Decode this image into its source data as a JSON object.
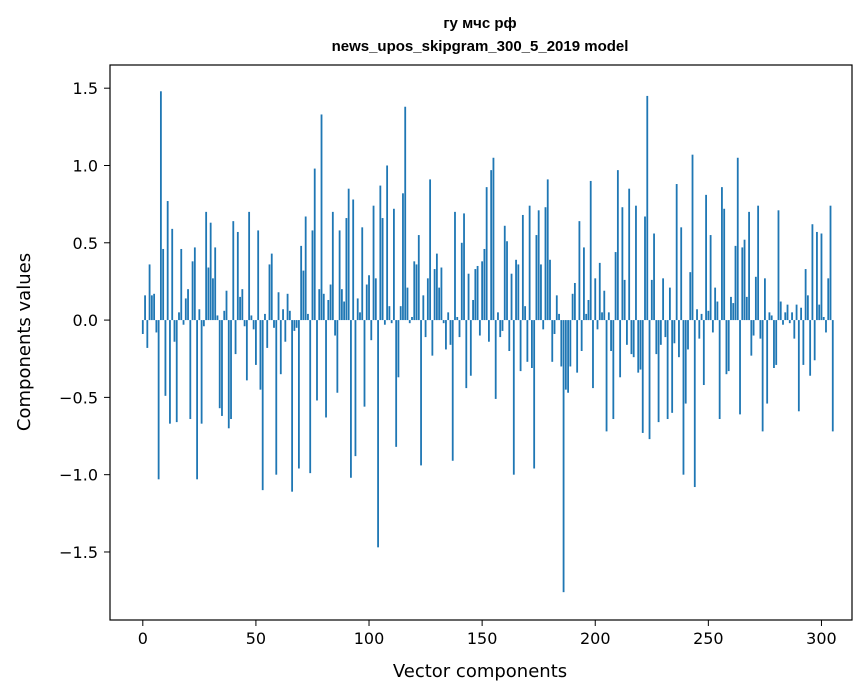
{
  "chart_data": {
    "type": "bar",
    "title": "гу мчс рф",
    "subtitle": "news_upos_skipgram_300_5_2019 model",
    "xlabel": "Vector components",
    "ylabel": "Components values",
    "xlim": [
      -14.5,
      313.5
    ],
    "ylim": [
      -1.94,
      1.65
    ],
    "xticks": [
      0,
      50,
      100,
      150,
      200,
      250,
      300
    ],
    "xtick_labels": [
      "0",
      "50",
      "100",
      "150",
      "200",
      "250",
      "300"
    ],
    "yticks": [
      -1.5,
      -1.0,
      -0.5,
      0.0,
      0.5,
      1.0,
      1.5
    ],
    "ytick_labels": [
      "−1.5",
      "−1.0",
      "−0.5",
      "0.0",
      "0.5",
      "1.0",
      "1.5"
    ],
    "bar_color": "#1f77b4",
    "grid": false,
    "values": [
      -0.09,
      0.16,
      -0.18,
      0.36,
      0.16,
      0.17,
      -0.08,
      -1.03,
      1.48,
      0.46,
      -0.49,
      0.77,
      -0.67,
      0.59,
      -0.14,
      -0.66,
      0.05,
      0.46,
      -0.03,
      0.14,
      0.2,
      -0.64,
      0.38,
      0.47,
      -1.03,
      0.07,
      -0.67,
      -0.04,
      0.7,
      0.34,
      0.63,
      0.27,
      0.47,
      0.03,
      -0.57,
      -0.62,
      0.06,
      0.19,
      -0.7,
      -0.64,
      0.64,
      -0.22,
      0.57,
      0.15,
      0.2,
      -0.04,
      -0.39,
      0.7,
      0.03,
      -0.06,
      -0.29,
      0.58,
      -0.45,
      -1.1,
      0.04,
      -0.18,
      0.36,
      0.43,
      -0.05,
      -1.0,
      0.18,
      -0.35,
      0.07,
      -0.14,
      0.17,
      0.06,
      -1.11,
      -0.07,
      -0.05,
      -0.96,
      0.48,
      0.32,
      0.67,
      0.04,
      -0.99,
      0.58,
      0.98,
      -0.52,
      0.2,
      1.33,
      0.17,
      -0.63,
      0.13,
      0.23,
      0.7,
      -0.1,
      -0.47,
      0.58,
      0.2,
      0.12,
      0.66,
      0.85,
      -1.02,
      0.78,
      -0.88,
      0.14,
      0.05,
      0.6,
      -0.56,
      0.23,
      0.29,
      -0.13,
      0.74,
      0.27,
      -1.47,
      0.87,
      0.66,
      -0.03,
      1.0,
      0.09,
      -0.02,
      0.72,
      -0.82,
      -0.37,
      0.09,
      0.82,
      1.38,
      0.21,
      -0.02,
      0.02,
      0.38,
      0.36,
      0.55,
      -0.94,
      0.16,
      -0.11,
      0.27,
      0.91,
      -0.23,
      0.33,
      0.43,
      0.21,
      0.34,
      -0.02,
      -0.19,
      0.05,
      -0.16,
      -0.91,
      0.7,
      0.02,
      -0.11,
      0.5,
      0.69,
      -0.44,
      0.3,
      -0.36,
      0.13,
      0.33,
      0.35,
      -0.1,
      0.38,
      0.46,
      0.86,
      -0.14,
      0.97,
      1.05,
      -0.51,
      0.05,
      -0.11,
      -0.07,
      0.61,
      0.51,
      -0.2,
      0.3,
      -1.0,
      0.39,
      0.36,
      -0.33,
      0.68,
      0.09,
      -0.27,
      0.74,
      -0.31,
      -0.96,
      0.55,
      0.71,
      0.36,
      -0.06,
      0.73,
      0.91,
      0.39,
      -0.27,
      -0.09,
      0.16,
      0.04,
      -0.3,
      -1.76,
      -0.45,
      -0.47,
      -0.3,
      0.17,
      0.24,
      -0.34,
      0.64,
      -0.2,
      0.47,
      0.04,
      0.13,
      0.9,
      -0.44,
      0.27,
      -0.06,
      0.37,
      0.05,
      0.19,
      -0.72,
      0.05,
      -0.2,
      -0.64,
      0.44,
      0.97,
      -0.37,
      0.73,
      0.26,
      -0.16,
      0.85,
      -0.22,
      -0.24,
      0.74,
      -0.34,
      -0.32,
      -0.73,
      0.67,
      1.45,
      -0.77,
      0.26,
      0.56,
      -0.22,
      -0.66,
      -0.16,
      0.27,
      -0.11,
      -0.64,
      0.21,
      -0.6,
      -0.15,
      0.88,
      -0.24,
      0.6,
      -1.0,
      -0.54,
      -0.19,
      0.31,
      1.07,
      -1.08,
      0.07,
      -0.12,
      0.04,
      -0.42,
      0.81,
      0.06,
      0.55,
      -0.08,
      0.21,
      0.12,
      -0.64,
      0.86,
      0.72,
      -0.35,
      -0.33,
      0.15,
      0.11,
      0.48,
      1.05,
      -0.61,
      0.47,
      0.52,
      0.15,
      0.7,
      -0.23,
      -0.1,
      0.28,
      0.74,
      -0.12,
      -0.72,
      0.27,
      -0.54,
      0.05,
      0.03,
      -0.31,
      -0.29,
      0.71,
      0.12,
      -0.03,
      0.05,
      0.1,
      -0.02,
      0.05,
      -0.12,
      0.1,
      -0.59,
      0.08,
      -0.29,
      0.33,
      0.16,
      -0.36,
      0.62,
      -0.26,
      0.57,
      0.1,
      0.56,
      0.02,
      -0.08,
      0.27,
      0.74,
      -0.72
    ]
  }
}
